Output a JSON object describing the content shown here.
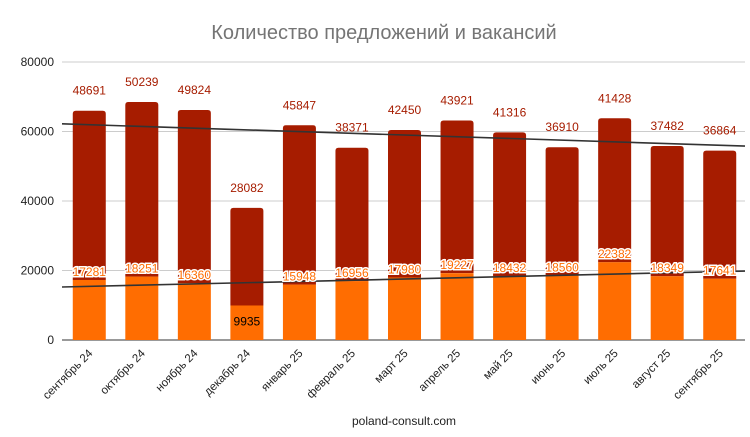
{
  "chart_data": {
    "type": "bar",
    "stacked": true,
    "title": "Количество предложений и вакансий",
    "footer": "poland-consult.com",
    "xlabel": "",
    "ylabel": "",
    "ylim": [
      0,
      80000
    ],
    "yticks": [
      0,
      20000,
      40000,
      60000,
      80000
    ],
    "ytick_labels": [
      "0",
      "20000",
      "40000",
      "60000",
      "80000"
    ],
    "grid": true,
    "legend": "none",
    "categories": [
      "сентябрь 24",
      "октябрь 24",
      "ноябрь 24",
      "декабрь 24",
      "январь 25",
      "февраль 25",
      "март 25",
      "апрель 25",
      "май 25",
      "июнь 25",
      "июль 25",
      "август 25",
      "сентябрь 25"
    ],
    "series": [
      {
        "name": "bottom",
        "color": "#ff6d01",
        "values": [
          17281,
          18251,
          16360,
          9935,
          15948,
          16956,
          17980,
          19227,
          18432,
          18560,
          22382,
          18349,
          17641
        ]
      },
      {
        "name": "top",
        "color": "#a61c00",
        "values": [
          48691,
          50239,
          49824,
          28082,
          45847,
          38371,
          42450,
          43921,
          41316,
          36910,
          41428,
          37482,
          36864
        ]
      }
    ],
    "trendlines": [
      {
        "series": "top-total",
        "start_value": 62200,
        "end_value": 55800,
        "color": "#333333"
      },
      {
        "series": "bottom",
        "start_value": 15250,
        "end_value": 19850,
        "color": "#333333"
      }
    ]
  }
}
